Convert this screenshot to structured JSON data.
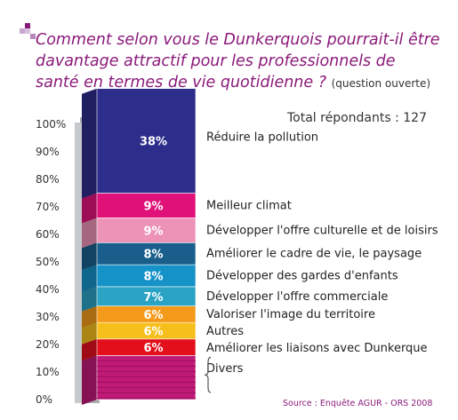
{
  "chart_data": {
    "type": "bar",
    "stacked": true,
    "title": "Comment selon vous le Dunkerquois pourrait-il être davantage attractif pour les professionnels de santé en termes de vie quotidienne ?",
    "subtitle": "(question ouverte)",
    "total_label": "Total répondants : 127",
    "source": "Source : Enquête AGUR - ORS 2008",
    "ylim": [
      0,
      100
    ],
    "yticks": [
      "0%",
      "10%",
      "20%",
      "30%",
      "40%",
      "50%",
      "60%",
      "70%",
      "80%",
      "90%",
      "100%"
    ],
    "grid": false,
    "series": [
      {
        "name": "Divers",
        "value": 16,
        "label": "",
        "color": "#c01a78"
      },
      {
        "name": "Améliorer les liaisons avec Dunkerque",
        "value": 6,
        "label": "6%",
        "color": "#e3101c"
      },
      {
        "name": "Autres",
        "value": 6,
        "label": "6%",
        "color": "#f6bf1c"
      },
      {
        "name": "Valoriser l'image du territoire",
        "value": 6,
        "label": "6%",
        "color": "#f39a1a"
      },
      {
        "name": "Développer l'offre commerciale",
        "value": 7,
        "label": "7%",
        "color": "#2aa3c4"
      },
      {
        "name": "Développer des gardes d'enfants",
        "value": 8,
        "label": "8%",
        "color": "#1592c8"
      },
      {
        "name": "Améliorer le cadre de vie, le paysage",
        "value": 8,
        "label": "8%",
        "color": "#1a5f8c"
      },
      {
        "name": "Développer l'offre culturelle et de loisirs",
        "value": 9,
        "label": "9%",
        "color": "#ec93b7"
      },
      {
        "name": "Meilleur climat",
        "value": 9,
        "label": "9%",
        "color": "#e0127a"
      },
      {
        "name": "Réduire la pollution",
        "value": 38,
        "label": "38%",
        "color": "#2d2d8c"
      }
    ]
  }
}
